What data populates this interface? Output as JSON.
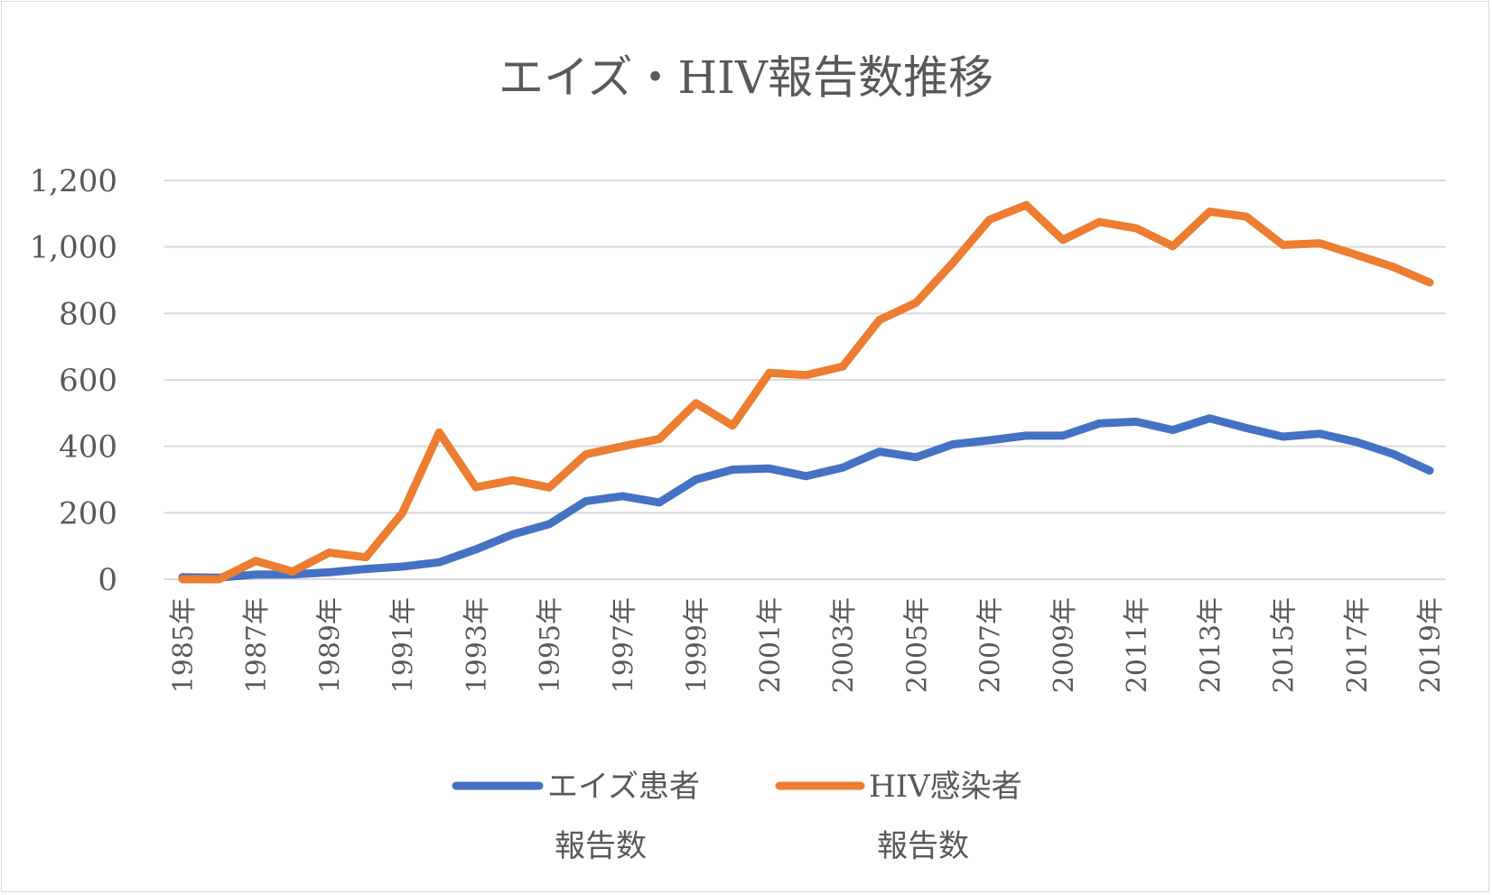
{
  "chart_data": {
    "type": "line",
    "title": "エイズ・HIV報告数推移",
    "xlabel": "",
    "ylabel": "",
    "ylim": [
      0,
      1200
    ],
    "yticks": [
      "0",
      "200",
      "400",
      "600",
      "800",
      "1,000",
      "1,200"
    ],
    "grid": true,
    "legend_position": "bottom",
    "x": [
      "1985年",
      "1986年",
      "1987年",
      "1988年",
      "1989年",
      "1990年",
      "1991年",
      "1992年",
      "1993年",
      "1994年",
      "1995年",
      "1996年",
      "1997年",
      "1998年",
      "1999年",
      "2000年",
      "2001年",
      "2002年",
      "2003年",
      "2004年",
      "2005年",
      "2006年",
      "2007年",
      "2008年",
      "2009年",
      "2010年",
      "2011年",
      "2012年",
      "2013年",
      "2014年",
      "2015年",
      "2016年",
      "2017年",
      "2018年",
      "2019年"
    ],
    "x_tick_labels": [
      "1985年",
      "1987年",
      "1989年",
      "1991年",
      "1993年",
      "1995年",
      "1997年",
      "1999年",
      "2001年",
      "2003年",
      "2005年",
      "2007年",
      "2009年",
      "2011年",
      "2013年",
      "2015年",
      "2017年",
      "2019年"
    ],
    "series": [
      {
        "name_line1": "エイズ患者",
        "name_line2": "報告数",
        "color": "#4472C4",
        "values": [
          6,
          5,
          14,
          14,
          21,
          31,
          38,
          51,
          90,
          135,
          166,
          235,
          250,
          231,
          300,
          330,
          333,
          310,
          336,
          384,
          367,
          406,
          418,
          432,
          432,
          469,
          474,
          449,
          484,
          455,
          429,
          438,
          413,
          377,
          327
        ]
      },
      {
        "name_line1": "HIV感染者",
        "name_line2": "報告数",
        "color": "#ED7D31",
        "values": [
          0,
          0,
          55,
          23,
          80,
          66,
          200,
          442,
          277,
          298,
          276,
          376,
          400,
          422,
          530,
          462,
          621,
          614,
          640,
          780,
          832,
          952,
          1082,
          1126,
          1021,
          1075,
          1056,
          1002,
          1106,
          1091,
          1006,
          1011,
          976,
          940,
          893
        ]
      }
    ]
  }
}
